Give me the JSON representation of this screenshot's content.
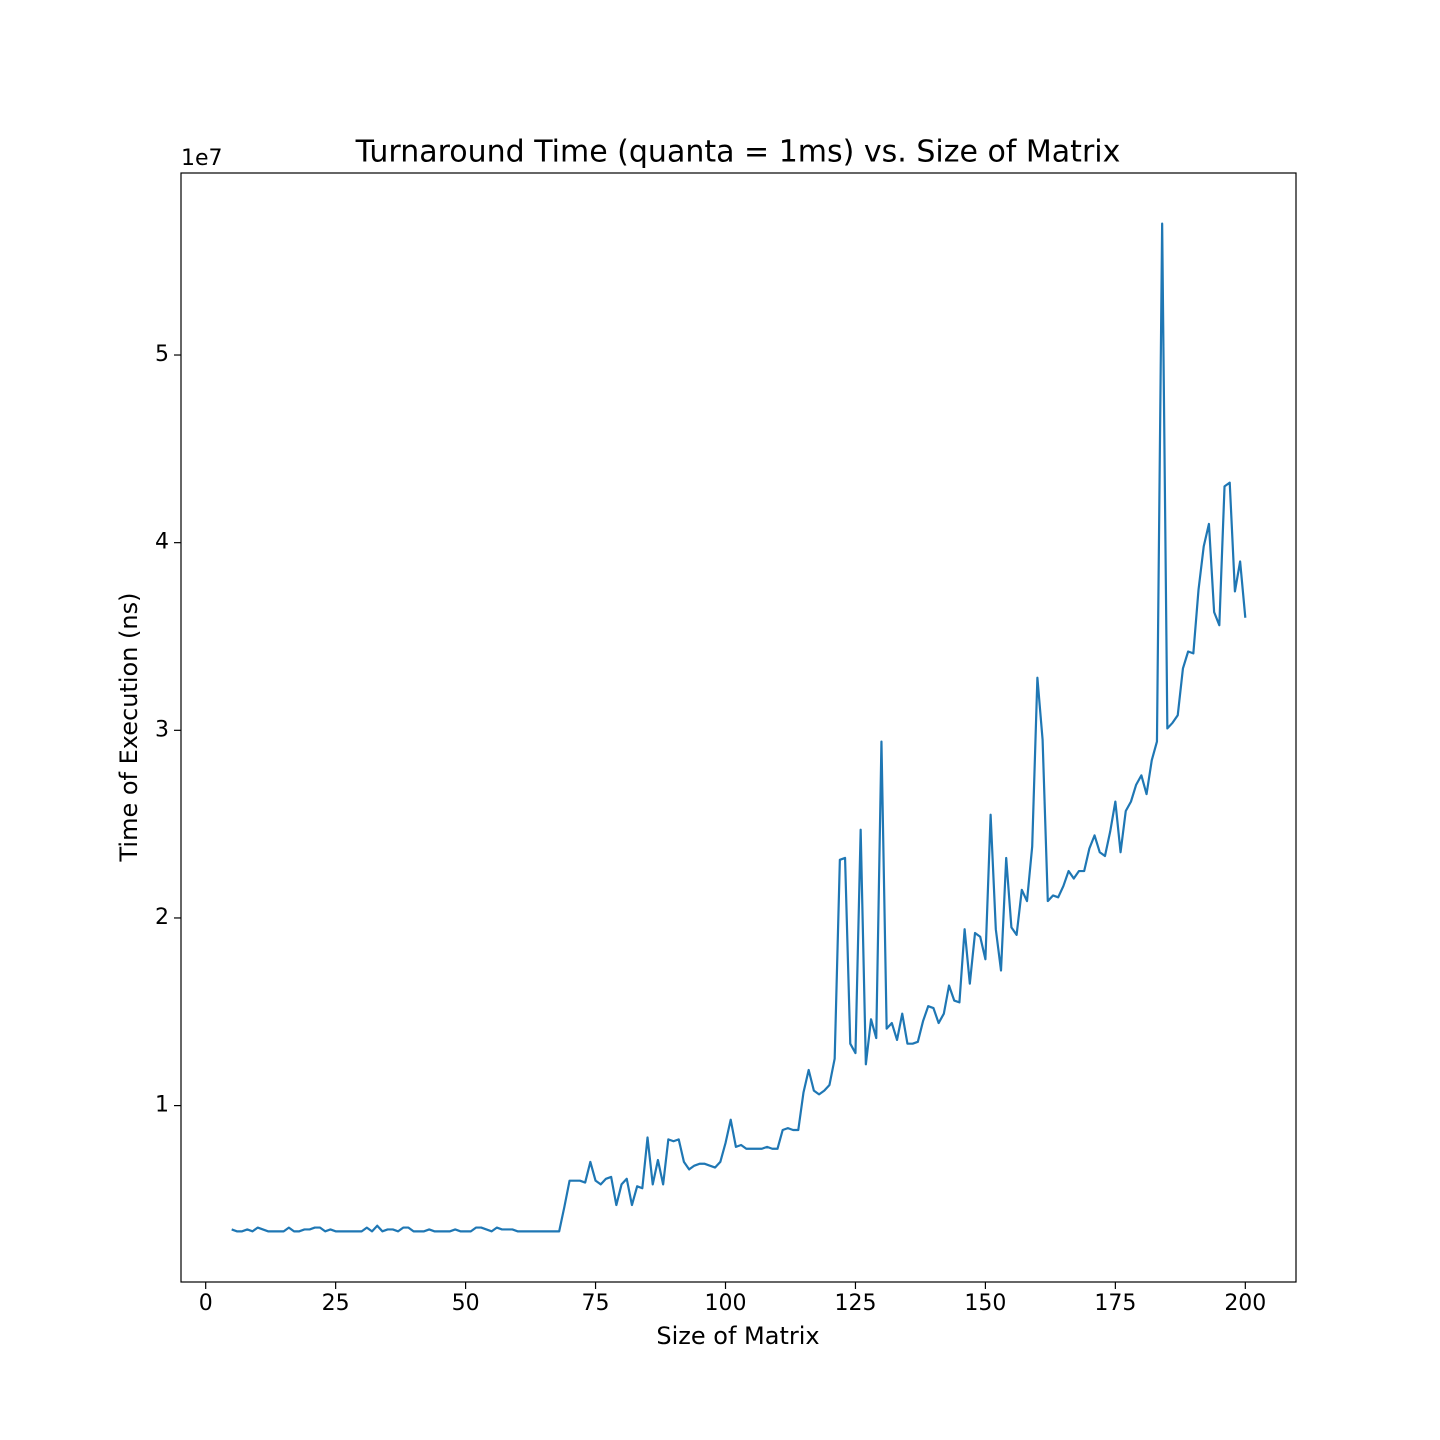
{
  "chart_data": {
    "type": "line",
    "title": "Turnaround Time (quanta = 1ms) vs. Size of Matrix",
    "x_label": "Size of Matrix",
    "y_label": "Time of Execution (ns)",
    "y_offset_label": "1e7",
    "color": "#1f77b4",
    "x": [
      5,
      6,
      7,
      8,
      9,
      10,
      11,
      12,
      13,
      14,
      15,
      16,
      17,
      18,
      19,
      20,
      21,
      22,
      23,
      24,
      25,
      26,
      27,
      28,
      29,
      30,
      31,
      32,
      33,
      34,
      35,
      36,
      37,
      38,
      39,
      40,
      41,
      42,
      43,
      44,
      45,
      46,
      47,
      48,
      49,
      50,
      51,
      52,
      53,
      54,
      55,
      56,
      57,
      58,
      59,
      60,
      61,
      62,
      63,
      64,
      65,
      66,
      67,
      68,
      69,
      70,
      71,
      72,
      73,
      74,
      75,
      76,
      77,
      78,
      79,
      80,
      81,
      82,
      83,
      84,
      85,
      86,
      87,
      88,
      89,
      90,
      91,
      92,
      93,
      94,
      95,
      96,
      97,
      98,
      99,
      100,
      101,
      102,
      103,
      104,
      105,
      106,
      107,
      108,
      109,
      110,
      111,
      112,
      113,
      114,
      115,
      116,
      117,
      118,
      119,
      120,
      121,
      122,
      123,
      124,
      125,
      126,
      127,
      128,
      129,
      130,
      131,
      132,
      133,
      134,
      135,
      136,
      137,
      138,
      139,
      140,
      141,
      142,
      143,
      144,
      145,
      146,
      147,
      148,
      149,
      150,
      151,
      152,
      153,
      154,
      155,
      156,
      157,
      158,
      159,
      160,
      161,
      162,
      163,
      164,
      165,
      166,
      167,
      168,
      169,
      170,
      171,
      172,
      173,
      174,
      175,
      176,
      177,
      178,
      179,
      180,
      181,
      182,
      183,
      184,
      185,
      186,
      187,
      188,
      189,
      190,
      191,
      192,
      193,
      194,
      195,
      196,
      197,
      198,
      199,
      200
    ],
    "values": [
      0.34,
      0.33,
      0.33,
      0.34,
      0.33,
      0.35,
      0.34,
      0.33,
      0.33,
      0.33,
      0.33,
      0.35,
      0.33,
      0.33,
      0.34,
      0.34,
      0.35,
      0.35,
      0.33,
      0.34,
      0.33,
      0.33,
      0.33,
      0.33,
      0.33,
      0.33,
      0.35,
      0.33,
      0.36,
      0.33,
      0.34,
      0.34,
      0.33,
      0.35,
      0.35,
      0.33,
      0.33,
      0.33,
      0.34,
      0.33,
      0.33,
      0.33,
      0.33,
      0.34,
      0.33,
      0.33,
      0.33,
      0.35,
      0.35,
      0.34,
      0.33,
      0.35,
      0.34,
      0.34,
      0.34,
      0.33,
      0.33,
      0.33,
      0.33,
      0.33,
      0.33,
      0.33,
      0.33,
      0.33,
      0.46,
      0.6,
      0.6,
      0.6,
      0.59,
      0.7,
      0.6,
      0.58,
      0.61,
      0.62,
      0.47,
      0.58,
      0.61,
      0.47,
      0.57,
      0.56,
      0.83,
      0.58,
      0.71,
      0.58,
      0.82,
      0.81,
      0.82,
      0.7,
      0.66,
      0.68,
      0.69,
      0.69,
      0.68,
      0.67,
      0.7,
      0.8,
      0.925,
      0.78,
      0.79,
      0.77,
      0.77,
      0.77,
      0.77,
      0.78,
      0.77,
      0.77,
      0.87,
      0.88,
      0.87,
      0.87,
      1.07,
      1.19,
      1.08,
      1.06,
      1.08,
      1.11,
      1.25,
      2.31,
      2.32,
      1.33,
      1.28,
      2.47,
      1.22,
      1.46,
      1.36,
      2.94,
      1.41,
      1.44,
      1.35,
      1.49,
      1.33,
      1.33,
      1.34,
      1.45,
      1.53,
      1.52,
      1.44,
      1.49,
      1.64,
      1.56,
      1.55,
      1.94,
      1.65,
      1.92,
      1.9,
      1.78,
      2.55,
      1.94,
      1.72,
      2.32,
      1.95,
      1.91,
      2.15,
      2.09,
      2.38,
      3.28,
      2.95,
      2.09,
      2.12,
      2.11,
      2.17,
      2.25,
      2.21,
      2.25,
      2.25,
      2.37,
      2.44,
      2.35,
      2.33,
      2.46,
      2.62,
      2.35,
      2.57,
      2.62,
      2.71,
      2.76,
      2.66,
      2.84,
      2.94,
      5.7,
      3.01,
      3.04,
      3.08,
      3.33,
      3.42,
      3.41,
      3.75,
      3.98,
      4.1,
      3.63,
      3.56,
      4.3,
      4.32,
      3.74,
      3.9,
      3.6
    ],
    "xlim": [
      -4.75,
      209.75
    ],
    "ylim": [
      0.06,
      5.97
    ],
    "xticks": [
      0,
      25,
      50,
      75,
      100,
      125,
      150,
      175,
      200
    ],
    "yticks": [
      1,
      2,
      3,
      4,
      5
    ],
    "grid": false
  }
}
